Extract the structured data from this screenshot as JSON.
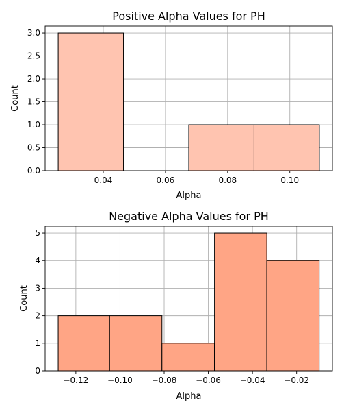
{
  "chart_data": [
    {
      "type": "bar",
      "title": "Positive Alpha Values for PH",
      "xlabel": "Alpha",
      "ylabel": "Count",
      "bar_color": "#ffc4b0",
      "bins": [
        {
          "x0": 0.0255,
          "x1": 0.0465,
          "count": 3
        },
        {
          "x0": 0.0465,
          "x1": 0.0675,
          "count": 0
        },
        {
          "x0": 0.0675,
          "x1": 0.0885,
          "count": 1
        },
        {
          "x0": 0.0885,
          "x1": 0.1095,
          "count": 1
        }
      ],
      "xlim": [
        0.0213,
        0.1137
      ],
      "ylim": [
        0,
        3.15
      ],
      "xticks": [
        0.04,
        0.06,
        0.08,
        0.1
      ],
      "xtick_labels": [
        "0.04",
        "0.06",
        "0.08",
        "0.10"
      ],
      "yticks": [
        0,
        0.5,
        1.0,
        1.5,
        2.0,
        2.5,
        3.0
      ],
      "ytick_labels": [
        "0.0",
        "0.5",
        "1.0",
        "1.5",
        "2.0",
        "2.5",
        "3.0"
      ],
      "grid": true
    },
    {
      "type": "bar",
      "title": "Negative Alpha Values for PH",
      "xlabel": "Alpha",
      "ylabel": "Count",
      "bar_color": "#ffa585",
      "bins": [
        {
          "x0": -0.128,
          "x1": -0.1047,
          "count": 2
        },
        {
          "x0": -0.1047,
          "x1": -0.081,
          "count": 2
        },
        {
          "x0": -0.081,
          "x1": -0.0572,
          "count": 1
        },
        {
          "x0": -0.0572,
          "x1": -0.0335,
          "count": 5
        },
        {
          "x0": -0.0335,
          "x1": -0.0098,
          "count": 4
        }
      ],
      "xlim": [
        -0.1339,
        -0.0038
      ],
      "ylim": [
        0,
        5.25
      ],
      "xticks": [
        -0.12,
        -0.1,
        -0.08,
        -0.06,
        -0.04,
        -0.02
      ],
      "xtick_labels": [
        "−0.12",
        "−0.10",
        "−0.08",
        "−0.06",
        "−0.04",
        "−0.02"
      ],
      "yticks": [
        0,
        1,
        2,
        3,
        4,
        5
      ],
      "ytick_labels": [
        "0",
        "1",
        "2",
        "3",
        "4",
        "5"
      ],
      "grid": true
    }
  ]
}
